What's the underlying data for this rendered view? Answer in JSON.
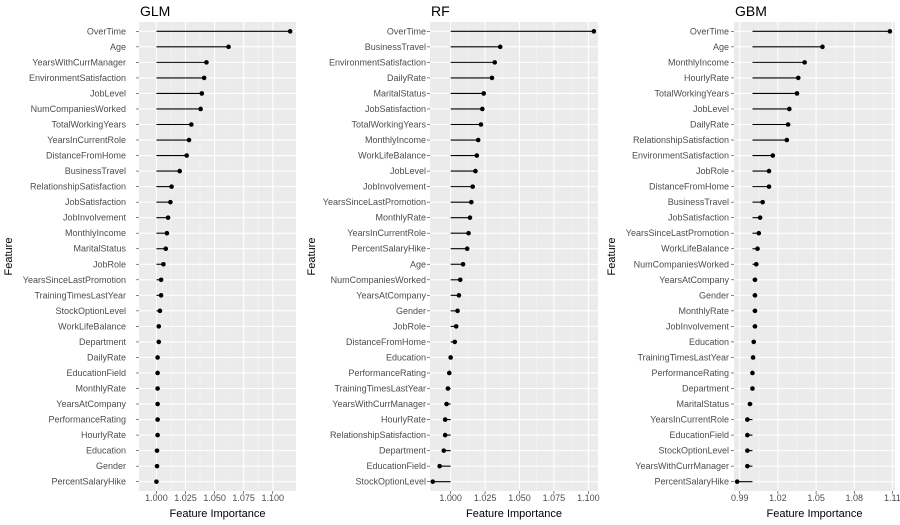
{
  "chart_data": [
    {
      "type": "lollipop",
      "title": "GLM",
      "xlabel": "Feature Importance",
      "ylabel": "Feature",
      "xlim": [
        0.985,
        1.12
      ],
      "xticks": [
        1.0,
        1.025,
        1.05,
        1.075,
        1.1
      ],
      "xtick_labels": [
        "1.000",
        "1.025",
        "1.050",
        "1.075",
        "1.100"
      ],
      "baseline": 1.0,
      "grid": true,
      "panel_background": "#ebebeb",
      "mark_color": "#000000",
      "features": [
        "OverTime",
        "Age",
        "YearsWithCurrManager",
        "EnvironmentSatisfaction",
        "JobLevel",
        "NumCompaniesWorked",
        "TotalWorkingYears",
        "YearsInCurrentRole",
        "DistanceFromHome",
        "BusinessTravel",
        "RelationshipSatisfaction",
        "JobSatisfaction",
        "JobInvolvement",
        "MonthlyIncome",
        "MaritalStatus",
        "JobRole",
        "YearsSinceLastPromotion",
        "TrainingTimesLastYear",
        "StockOptionLevel",
        "WorkLifeBalance",
        "Department",
        "DailyRate",
        "EducationField",
        "MonthlyRate",
        "YearsAtCompany",
        "PerformanceRating",
        "HourlyRate",
        "Education",
        "Gender",
        "PercentSalaryHike"
      ],
      "values": [
        1.115,
        1.062,
        1.043,
        1.041,
        1.039,
        1.038,
        1.03,
        1.028,
        1.026,
        1.02,
        1.013,
        1.012,
        1.01,
        1.009,
        1.008,
        1.006,
        1.004,
        1.004,
        1.003,
        1.002,
        1.002,
        1.001,
        1.001,
        1.001,
        1.001,
        1.001,
        1.001,
        1.0005,
        1.0005,
        1.0
      ]
    },
    {
      "type": "lollipop",
      "title": "RF",
      "xlabel": "Feature Importance",
      "ylabel": "Feature",
      "xlim": [
        0.985,
        1.107
      ],
      "xticks": [
        1.0,
        1.025,
        1.05,
        1.075,
        1.1
      ],
      "xtick_labels": [
        "1.000",
        "1.025",
        "1.050",
        "1.075",
        "1.100"
      ],
      "baseline": 1.0,
      "grid": true,
      "panel_background": "#ebebeb",
      "mark_color": "#000000",
      "features": [
        "OverTime",
        "BusinessTravel",
        "EnvironmentSatisfaction",
        "DailyRate",
        "MaritalStatus",
        "JobSatisfaction",
        "TotalWorkingYears",
        "MonthlyIncome",
        "WorkLifeBalance",
        "JobLevel",
        "JobInvolvement",
        "YearsSinceLastPromotion",
        "MonthlyRate",
        "YearsInCurrentRole",
        "PercentSalaryHike",
        "Age",
        "NumCompaniesWorked",
        "YearsAtCompany",
        "Gender",
        "JobRole",
        "DistanceFromHome",
        "Education",
        "PerformanceRating",
        "TrainingTimesLastYear",
        "YearsWithCurrManager",
        "HourlyRate",
        "RelationshipSatisfaction",
        "Department",
        "EducationField",
        "StockOptionLevel"
      ],
      "values": [
        1.104,
        1.036,
        1.032,
        1.03,
        1.024,
        1.023,
        1.022,
        1.02,
        1.019,
        1.018,
        1.016,
        1.015,
        1.014,
        1.013,
        1.012,
        1.009,
        1.007,
        1.006,
        1.005,
        1.004,
        1.003,
        1.0,
        0.999,
        0.998,
        0.997,
        0.996,
        0.996,
        0.995,
        0.992,
        0.987
      ]
    },
    {
      "type": "lollipop",
      "title": "GBM",
      "xlabel": "Feature Importance",
      "ylabel": "Feature",
      "xlim": [
        0.9855,
        1.112
      ],
      "xticks": [
        0.99,
        1.02,
        1.05,
        1.08,
        1.11
      ],
      "xtick_labels": [
        "0.99",
        "1.02",
        "1.05",
        "1.08",
        "1.11"
      ],
      "baseline": 1.0,
      "grid": true,
      "panel_background": "#ebebeb",
      "mark_color": "#000000",
      "features": [
        "OverTime",
        "Age",
        "MonthlyIncome",
        "HourlyRate",
        "TotalWorkingYears",
        "JobLevel",
        "DailyRate",
        "RelationshipSatisfaction",
        "EnvironmentSatisfaction",
        "JobRole",
        "DistanceFromHome",
        "BusinessTravel",
        "JobSatisfaction",
        "YearsSinceLastPromotion",
        "WorkLifeBalance",
        "NumCompaniesWorked",
        "YearsAtCompany",
        "Gender",
        "MonthlyRate",
        "JobInvolvement",
        "Education",
        "TrainingTimesLastYear",
        "PerformanceRating",
        "Department",
        "MaritalStatus",
        "YearsInCurrentRole",
        "EducationField",
        "StockOptionLevel",
        "YearsWithCurrManager",
        "PercentSalaryHike"
      ],
      "values": [
        1.108,
        1.055,
        1.041,
        1.036,
        1.035,
        1.029,
        1.028,
        1.027,
        1.016,
        1.013,
        1.013,
        1.008,
        1.006,
        1.005,
        1.004,
        1.003,
        1.002,
        1.002,
        1.002,
        1.002,
        1.001,
        1.0005,
        1.0,
        1.0,
        0.998,
        0.996,
        0.996,
        0.996,
        0.996,
        0.988
      ]
    }
  ]
}
